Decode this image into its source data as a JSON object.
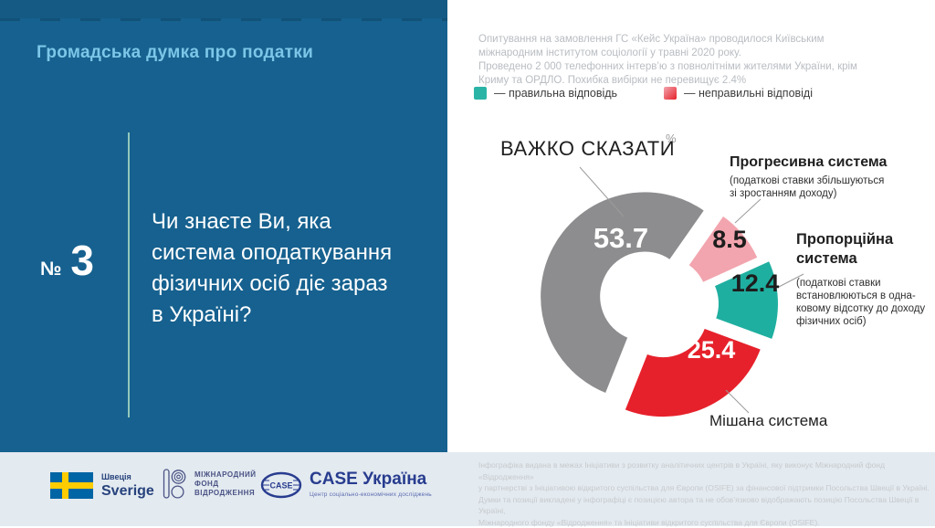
{
  "theme": {
    "panel_blue": "#16618f",
    "title_blue": "#7cc6e8",
    "footer_bg": "#e3eaf0",
    "rule_green": "#a9d9c3"
  },
  "left_panel": {
    "title": "Громадська думка про податки",
    "number_sign": "№",
    "number_value": "3",
    "question": "Чи знаєте Ви, яка\nсистема оподаткування\nфізичних осіб діє зараз\nв Україні?"
  },
  "methodology": "Опитування на замовлення ГС «Кейс Україна» проводилося Київським\nміжнародним інститутом соціології у травні 2020 року.\nПроведено 2 000 телефонних інтерв’ю з повнолітніми жителями України, крім\nКриму та ОРДЛО. Похибка вибірки не перевищує 2.4%",
  "legend": {
    "correct_label": "— правильна відповідь",
    "incorrect_label": "— неправильні відповіді",
    "correct_color": "#2ab4a6",
    "incorrect_color_from": "#f2a5ae",
    "incorrect_color_to": "#e6212b"
  },
  "chart_data": {
    "type": "pie",
    "donut": true,
    "unit": "%",
    "start_angle_deg": 35,
    "legend_position": "top",
    "series": [
      {
        "name": "Прогресивна система",
        "value": 8.5,
        "color": "#f2a5ae",
        "note": "(податкові ставки збільшуються\nзі зростанням доходу)",
        "correct": false
      },
      {
        "name": "Пропорційна\nсистема",
        "value": 12.4,
        "color": "#1fafa0",
        "note": "(податкові ставки\nвстановлюються в одна-\nковому відсотку до доходу\nфізичних осіб)",
        "correct": true
      },
      {
        "name": "Мішана система",
        "value": 25.4,
        "color": "#e6212b",
        "note": "",
        "correct": false
      },
      {
        "name": "ВАЖКО СКАЗАТИ",
        "value": 53.7,
        "color": "#8d8d8f",
        "note": "",
        "correct": false
      }
    ]
  },
  "footer": {
    "sweden": {
      "label_small": "Швеція",
      "label_large": "Sverige"
    },
    "irf": {
      "name": "МІЖНАРОДНИЙ\nФОНД\nВІДРОДЖЕННЯ"
    },
    "case": {
      "oval_text": "CASE",
      "title": "CASE Україна",
      "subtitle": "Центр соціально-економічних досліджень"
    },
    "disclaimer": "Інфографіка видана в межах Ініціативи з розвитку аналітичних центрів в Україні, яку виконує Міжнародний фонд «Відродження»\nу партнерстві з Ініціативою відкритого суспільства для Європи (OSIFE) за фінансової підтримки Посольства Швеції в Україні.\nДумки та позиції викладені у інфографіці є позицією автора та не обов’язково відображають позицію Посольства Швеції в Україні,\nМіжнародного фонду «Відродження» та Ініціативи відкритого суспільства для Європи (OSIFE)."
  }
}
